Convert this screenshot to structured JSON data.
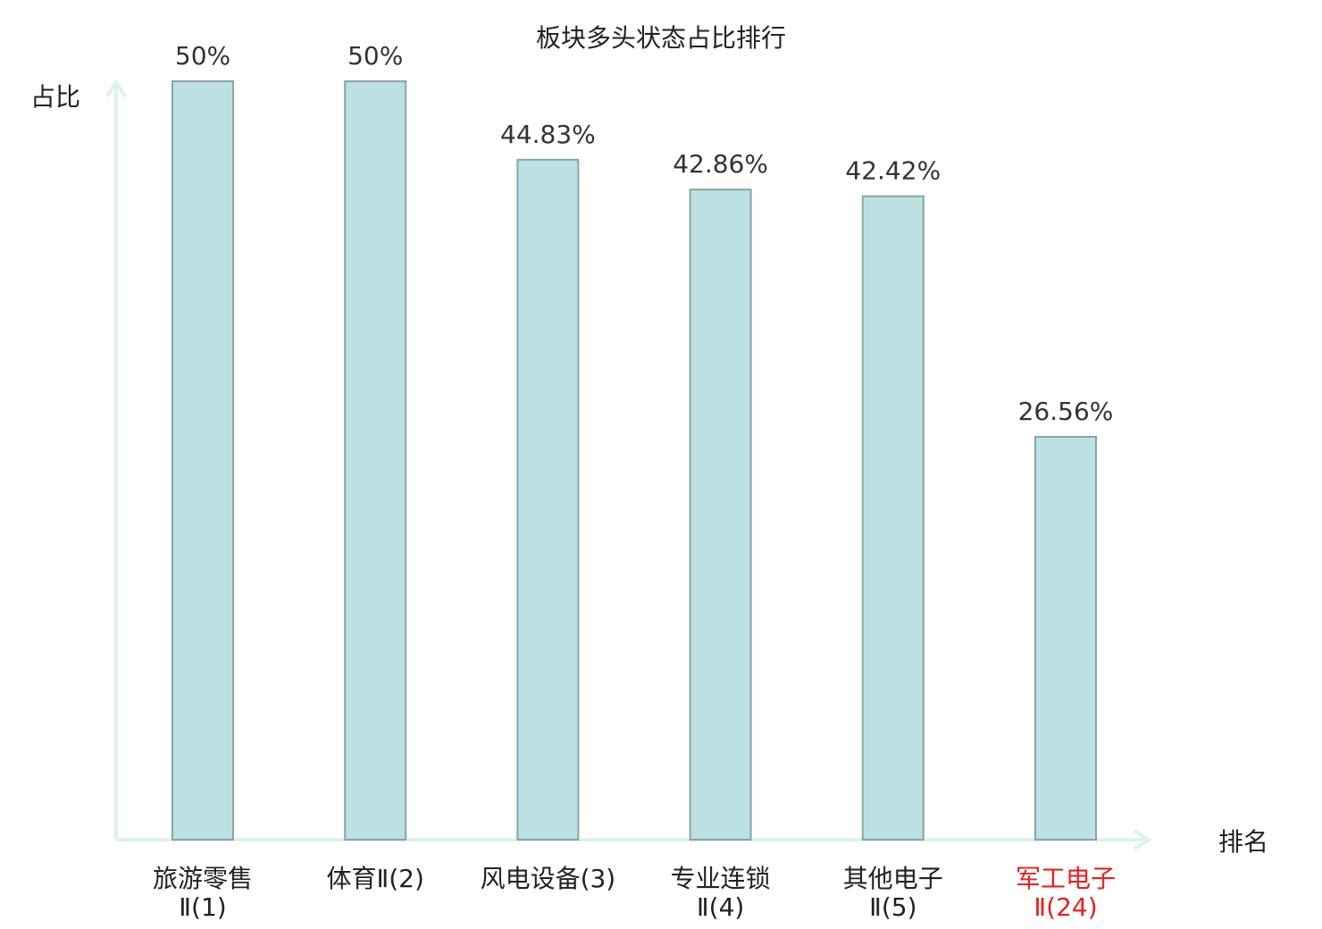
{
  "chart_data": {
    "type": "bar",
    "title": "板块多头状态占比排行",
    "ylabel": "占比",
    "xlabel": "排名",
    "categories": [
      {
        "line1": "旅游零售",
        "line2": "Ⅱ(1)",
        "highlight": false
      },
      {
        "line1": "体育Ⅱ(2)",
        "line2": "",
        "highlight": false
      },
      {
        "line1": "风电设备(3)",
        "line2": "",
        "highlight": false
      },
      {
        "line1": "专业连锁",
        "line2": "Ⅱ(4)",
        "highlight": false
      },
      {
        "line1": "其他电子",
        "line2": "Ⅱ(5)",
        "highlight": false
      },
      {
        "line1": "军工电子",
        "line2": "Ⅱ(24)",
        "highlight": true
      }
    ],
    "values": [
      50,
      50,
      44.83,
      42.86,
      42.42,
      26.56
    ],
    "value_labels": [
      "50%",
      "50%",
      "44.83%",
      "42.86%",
      "42.42%",
      "26.56%"
    ],
    "ylim": [
      0,
      50
    ],
    "grid": false,
    "colors": {
      "bar_fill": "#bde0e3",
      "bar_stroke": "#86a6a8",
      "axis": "#def2ef",
      "text": "#222222",
      "highlight": "#e8201f"
    }
  }
}
